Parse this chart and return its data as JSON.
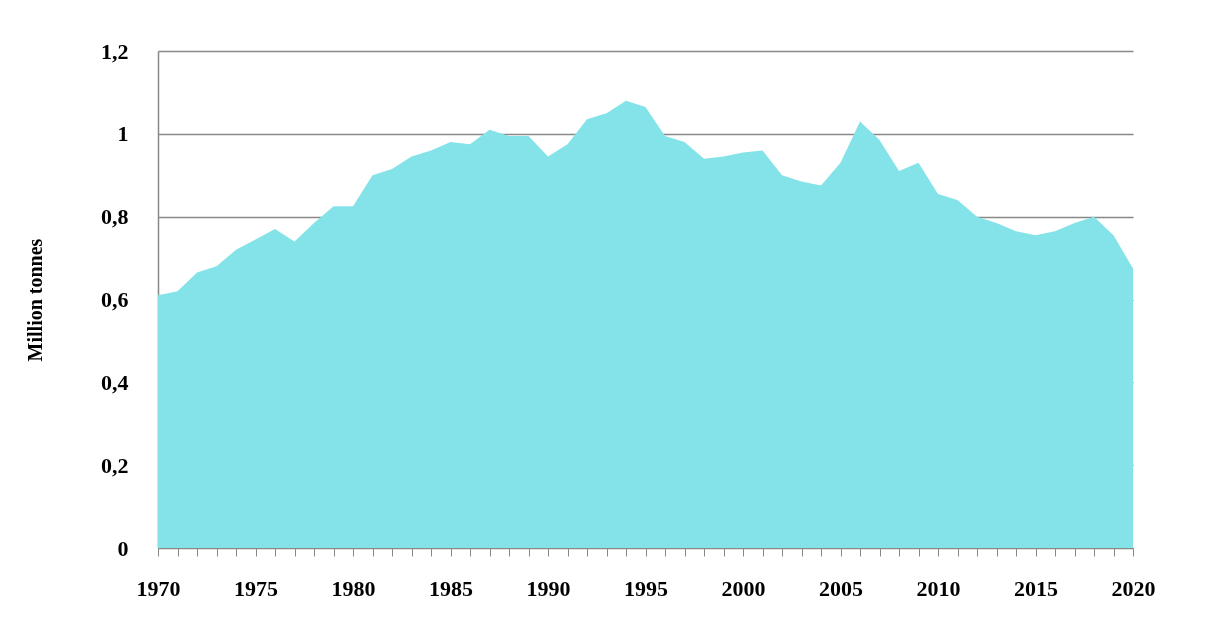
{
  "chart_data": {
    "type": "area",
    "ylabel": "Million tonnes",
    "x": [
      1970,
      1971,
      1972,
      1973,
      1974,
      1975,
      1976,
      1977,
      1978,
      1979,
      1980,
      1981,
      1982,
      1983,
      1984,
      1985,
      1986,
      1987,
      1988,
      1989,
      1990,
      1991,
      1992,
      1993,
      1994,
      1995,
      1996,
      1997,
      1998,
      1999,
      2000,
      2001,
      2002,
      2003,
      2004,
      2005,
      2006,
      2007,
      2008,
      2009,
      2010,
      2011,
      2012,
      2013,
      2014,
      2015,
      2016,
      2017,
      2018,
      2019,
      2020
    ],
    "series": [
      {
        "color": "#84e3e8",
        "values": [
          0.61,
          0.62,
          0.665,
          0.68,
          0.72,
          0.745,
          0.77,
          0.74,
          0.785,
          0.825,
          0.825,
          0.9,
          0.915,
          0.945,
          0.96,
          0.98,
          0.975,
          1.01,
          0.995,
          0.995,
          0.945,
          0.975,
          1.035,
          1.05,
          1.08,
          1.065,
          0.995,
          0.98,
          0.94,
          0.945,
          0.955,
          0.96,
          0.9,
          0.885,
          0.875,
          0.93,
          1.03,
          0.985,
          0.91,
          0.93,
          0.855,
          0.84,
          0.8,
          0.785,
          0.765,
          0.755,
          0.765,
          0.785,
          0.8,
          0.755,
          0.675
        ]
      }
    ],
    "xlim": [
      1970,
      2020
    ],
    "xticks": [
      1970,
      {
        "value": 1971,
        "label": null
      },
      {
        "value": 1972,
        "label": null
      },
      {
        "value": 1973,
        "label": null
      },
      {
        "value": 1974,
        "label": null
      },
      1975,
      {
        "value": 1976,
        "label": null
      },
      {
        "value": 1977,
        "label": null
      },
      {
        "value": 1978,
        "label": null
      },
      {
        "value": 1979,
        "label": null
      },
      1980,
      {
        "value": 1981,
        "label": null
      },
      {
        "value": 1982,
        "label": null
      },
      {
        "value": 1983,
        "label": null
      },
      {
        "value": 1984,
        "label": null
      },
      1985,
      {
        "value": 1986,
        "label": null
      },
      {
        "value": 1987,
        "label": null
      },
      {
        "value": 1988,
        "label": null
      },
      {
        "value": 1989,
        "label": null
      },
      1990,
      {
        "value": 1991,
        "label": null
      },
      {
        "value": 1992,
        "label": null
      },
      {
        "value": 1993,
        "label": null
      },
      {
        "value": 1994,
        "label": null
      },
      1995,
      {
        "value": 1996,
        "label": null
      },
      {
        "value": 1997,
        "label": null
      },
      {
        "value": 1998,
        "label": null
      },
      {
        "value": 1999,
        "label": null
      },
      2000,
      {
        "value": 2001,
        "label": null
      },
      {
        "value": 2002,
        "label": null
      },
      {
        "value": 2003,
        "label": null
      },
      {
        "value": 2004,
        "label": null
      },
      2005,
      {
        "value": 2006,
        "label": null
      },
      {
        "value": 2007,
        "label": null
      },
      {
        "value": 2008,
        "label": null
      },
      {
        "value": 2009,
        "label": null
      },
      2010,
      {
        "value": 2011,
        "label": null
      },
      {
        "value": 2012,
        "label": null
      },
      {
        "value": 2013,
        "label": null
      },
      {
        "value": 2014,
        "label": null
      },
      2015,
      {
        "value": 2016,
        "label": null
      },
      {
        "value": 2017,
        "label": null
      },
      {
        "value": 2018,
        "label": null
      },
      {
        "value": 2019,
        "label": null
      },
      2020
    ],
    "ylim": [
      0,
      1.2
    ],
    "yticks": [
      0,
      {
        "value": 0.2,
        "label": "0,2"
      },
      {
        "value": 0.4,
        "label": "0,4"
      },
      {
        "value": 0.6,
        "label": "0,6"
      },
      {
        "value": 0.8,
        "label": "0,8"
      },
      1,
      {
        "value": 1.2,
        "label": "1,2"
      }
    ],
    "grid": "y"
  }
}
